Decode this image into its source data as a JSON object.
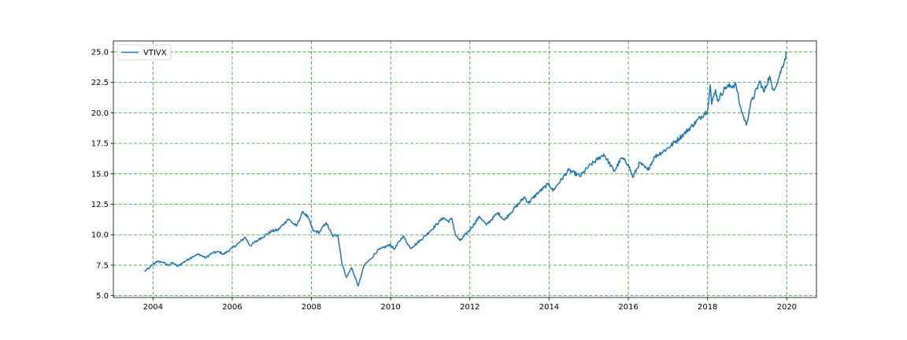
{
  "chart_data": {
    "type": "line",
    "title": "",
    "xlabel": "",
    "ylabel": "",
    "xlim": [
      "2003-01-01",
      "2020-10-01"
    ],
    "ylim": [
      4.85,
      25.9
    ],
    "x_ticks": [
      "2004",
      "2006",
      "2008",
      "2010",
      "2012",
      "2014",
      "2016",
      "2018",
      "2020"
    ],
    "y_ticks": [
      "5.0",
      "7.5",
      "10.0",
      "12.5",
      "15.0",
      "17.5",
      "20.0",
      "22.5",
      "25.0"
    ],
    "grid": true,
    "grid_color": "#2ca02c",
    "legend_position": "top-left",
    "series": [
      {
        "name": "VTIVX",
        "color": "#1f77b4",
        "points": [
          [
            "2003-10-15",
            7.0
          ],
          [
            "2003-12-01",
            7.3
          ],
          [
            "2004-02-01",
            7.8
          ],
          [
            "2004-04-01",
            7.75
          ],
          [
            "2004-05-15",
            7.5
          ],
          [
            "2004-07-01",
            7.7
          ],
          [
            "2004-08-15",
            7.4
          ],
          [
            "2004-10-01",
            7.7
          ],
          [
            "2004-12-31",
            8.2
          ],
          [
            "2005-03-01",
            8.4
          ],
          [
            "2005-05-01",
            8.1
          ],
          [
            "2005-07-01",
            8.5
          ],
          [
            "2005-09-01",
            8.6
          ],
          [
            "2005-10-15",
            8.4
          ],
          [
            "2005-12-31",
            8.9
          ],
          [
            "2006-03-01",
            9.3
          ],
          [
            "2006-05-01",
            9.8
          ],
          [
            "2006-06-15",
            9.1
          ],
          [
            "2006-09-01",
            9.6
          ],
          [
            "2006-12-31",
            10.3
          ],
          [
            "2007-03-01",
            10.4
          ],
          [
            "2007-06-01",
            11.3
          ],
          [
            "2007-08-15",
            10.7
          ],
          [
            "2007-10-15",
            11.9
          ],
          [
            "2007-12-01",
            11.4
          ],
          [
            "2008-01-20",
            10.3
          ],
          [
            "2008-03-15",
            10.2
          ],
          [
            "2008-05-15",
            11.0
          ],
          [
            "2008-07-15",
            9.9
          ],
          [
            "2008-09-01",
            10.0
          ],
          [
            "2008-10-10",
            7.6
          ],
          [
            "2008-11-20",
            6.5
          ],
          [
            "2009-01-05",
            7.3
          ],
          [
            "2009-03-09",
            5.8
          ],
          [
            "2009-05-01",
            7.5
          ],
          [
            "2009-07-01",
            8.0
          ],
          [
            "2009-09-01",
            8.7
          ],
          [
            "2009-12-31",
            9.2
          ],
          [
            "2010-02-01",
            8.8
          ],
          [
            "2010-04-25",
            9.9
          ],
          [
            "2010-07-01",
            8.9
          ],
          [
            "2010-09-01",
            9.3
          ],
          [
            "2010-12-31",
            10.3
          ],
          [
            "2011-04-30",
            11.4
          ],
          [
            "2011-06-15",
            11.1
          ],
          [
            "2011-07-20",
            11.3
          ],
          [
            "2011-08-20",
            10.0
          ],
          [
            "2011-10-03",
            9.5
          ],
          [
            "2011-12-31",
            10.4
          ],
          [
            "2012-03-31",
            11.5
          ],
          [
            "2012-06-01",
            10.8
          ],
          [
            "2012-09-15",
            11.8
          ],
          [
            "2012-11-15",
            11.2
          ],
          [
            "2012-12-31",
            11.7
          ],
          [
            "2013-05-20",
            13.1
          ],
          [
            "2013-06-24",
            12.6
          ],
          [
            "2013-09-15",
            13.4
          ],
          [
            "2013-12-31",
            14.2
          ],
          [
            "2014-02-03",
            13.6
          ],
          [
            "2014-06-30",
            15.3
          ],
          [
            "2014-10-15",
            14.8
          ],
          [
            "2014-12-31",
            15.6
          ],
          [
            "2015-05-20",
            16.6
          ],
          [
            "2015-08-24",
            15.2
          ],
          [
            "2015-10-30",
            16.3
          ],
          [
            "2015-12-31",
            15.8
          ],
          [
            "2016-02-11",
            14.7
          ],
          [
            "2016-04-15",
            15.9
          ],
          [
            "2016-06-27",
            15.3
          ],
          [
            "2016-09-01",
            16.4
          ],
          [
            "2016-12-31",
            17.1
          ],
          [
            "2017-06-01",
            18.3
          ],
          [
            "2017-12-31",
            20.2
          ],
          [
            "2018-01-26",
            22.3
          ],
          [
            "2018-02-08",
            20.7
          ],
          [
            "2018-03-15",
            21.9
          ],
          [
            "2018-04-02",
            21.0
          ],
          [
            "2018-06-15",
            22.1
          ],
          [
            "2018-09-20",
            22.3
          ],
          [
            "2018-10-29",
            20.5
          ],
          [
            "2018-12-24",
            19.0
          ],
          [
            "2019-01-31",
            20.7
          ],
          [
            "2019-04-30",
            22.6
          ],
          [
            "2019-06-03",
            21.7
          ],
          [
            "2019-07-26",
            23.0
          ],
          [
            "2019-08-23",
            21.9
          ],
          [
            "2019-10-01",
            22.4
          ],
          [
            "2019-12-31",
            24.9
          ]
        ]
      }
    ]
  }
}
